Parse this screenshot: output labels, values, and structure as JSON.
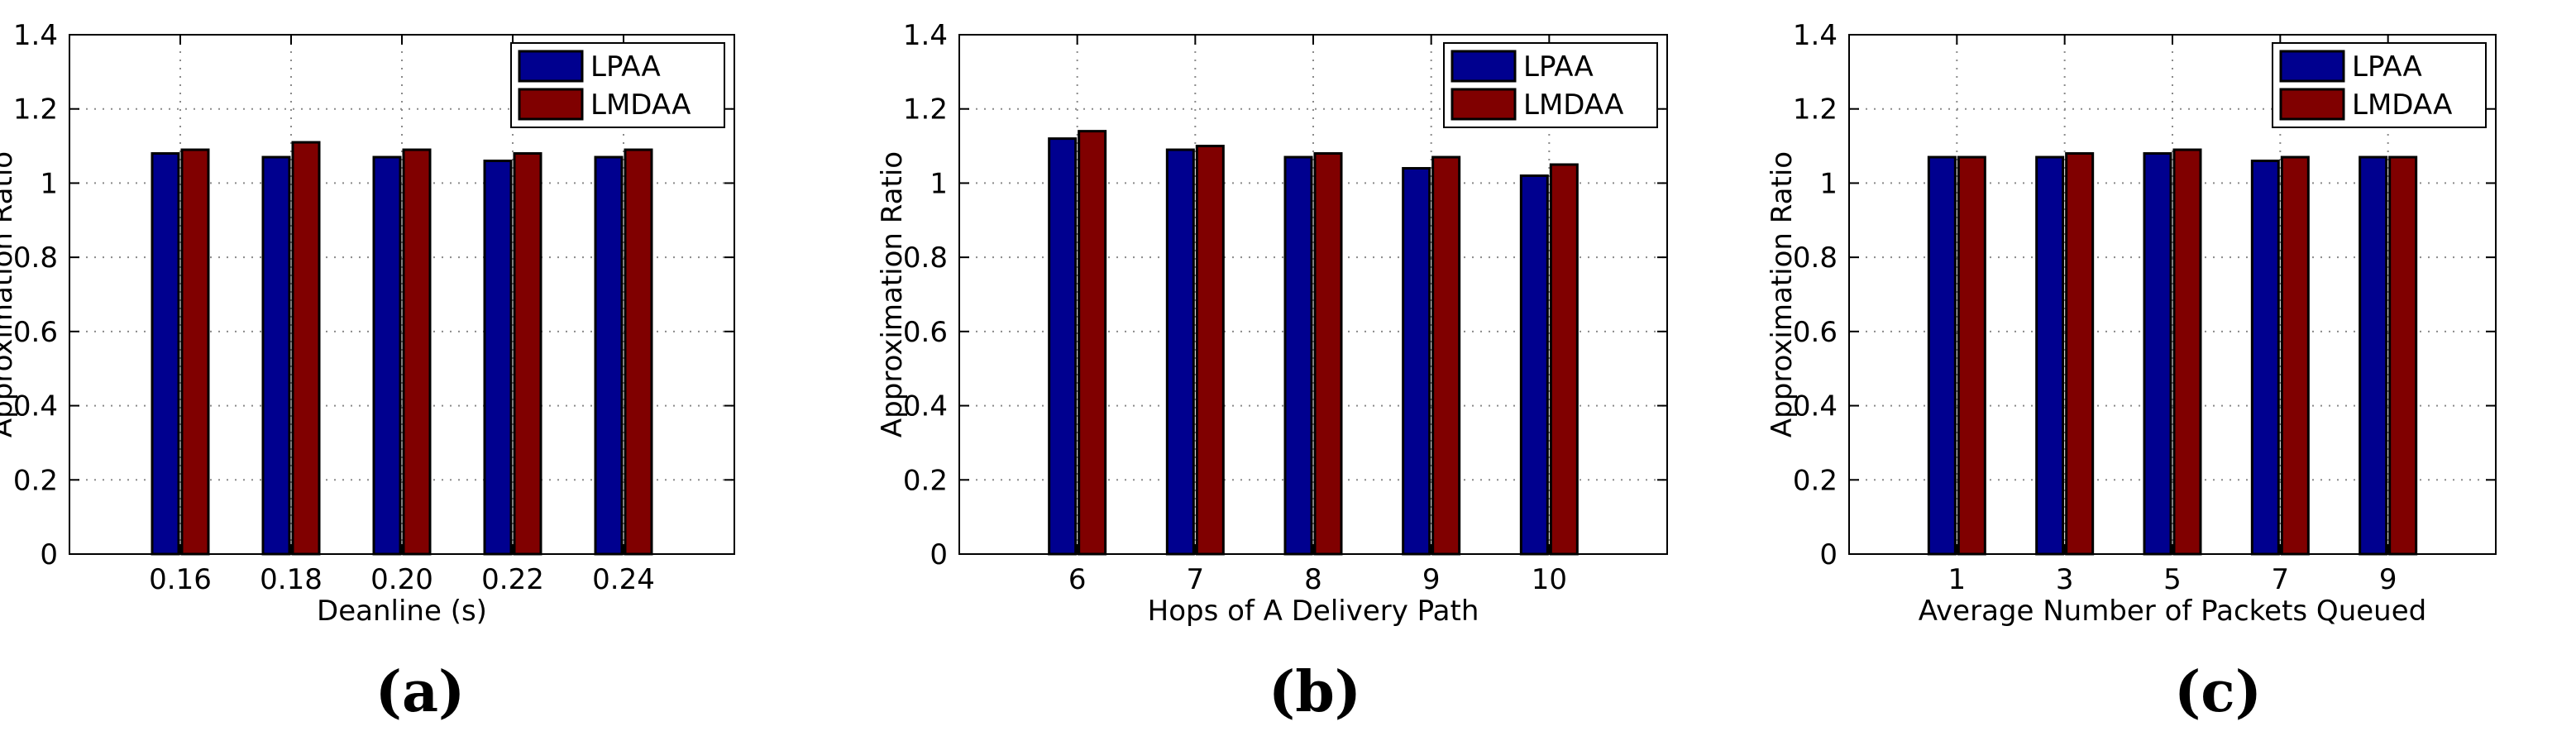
{
  "colors": {
    "series_lpaa": "#00008f",
    "series_lmdaa": "#800000",
    "grid": "#8a8a8a",
    "axis": "#000000",
    "background": "#ffffff"
  },
  "chart_data": [
    {
      "type": "bar",
      "panel_label": "(a)",
      "title": "",
      "xlabel": "Deanline (s)",
      "ylabel": "Approximation Ratio",
      "categories": [
        "0.16",
        "0.18",
        "0.20",
        "0.22",
        "0.24"
      ],
      "series": [
        {
          "name": "LPAA",
          "values": [
            1.08,
            1.07,
            1.07,
            1.06,
            1.07
          ]
        },
        {
          "name": "LMDAA",
          "values": [
            1.09,
            1.11,
            1.09,
            1.08,
            1.09
          ]
        }
      ],
      "ylim": [
        0,
        1.4
      ],
      "yticks": [
        "0",
        "0.2",
        "0.4",
        "0.6",
        "0.8",
        "1",
        "1.2",
        "1.4"
      ],
      "grid": true,
      "legend_position": "top-right"
    },
    {
      "type": "bar",
      "panel_label": "(b)",
      "title": "",
      "xlabel": "Hops of A Delivery Path",
      "ylabel": "Approximation Ratio",
      "categories": [
        "6",
        "7",
        "8",
        "9",
        "10"
      ],
      "series": [
        {
          "name": "LPAA",
          "values": [
            1.12,
            1.09,
            1.07,
            1.04,
            1.02
          ]
        },
        {
          "name": "LMDAA",
          "values": [
            1.14,
            1.1,
            1.08,
            1.07,
            1.05
          ]
        }
      ],
      "ylim": [
        0,
        1.4
      ],
      "yticks": [
        "0",
        "0.2",
        "0.4",
        "0.6",
        "0.8",
        "1",
        "1.2",
        "1.4"
      ],
      "grid": true,
      "legend_position": "top-right"
    },
    {
      "type": "bar",
      "panel_label": "(c)",
      "title": "",
      "xlabel": "Average Number of Packets Queued",
      "ylabel": "Approximation Ratio",
      "categories": [
        "1",
        "3",
        "5",
        "7",
        "9"
      ],
      "series": [
        {
          "name": "LPAA",
          "values": [
            1.07,
            1.07,
            1.08,
            1.06,
            1.07
          ]
        },
        {
          "name": "LMDAA",
          "values": [
            1.07,
            1.08,
            1.09,
            1.07,
            1.07
          ]
        }
      ],
      "ylim": [
        0,
        1.4
      ],
      "yticks": [
        "0",
        "0.2",
        "0.4",
        "0.6",
        "0.8",
        "1",
        "1.2",
        "1.4"
      ],
      "grid": true,
      "legend_position": "top-right"
    }
  ]
}
